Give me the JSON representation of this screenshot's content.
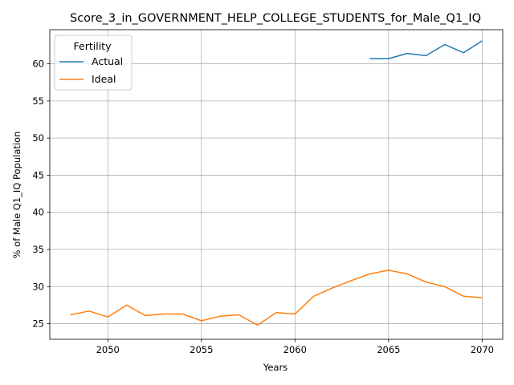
{
  "chart_data": {
    "type": "line",
    "title": "Score_3_in_GOVERNMENT_HELP_COLLEGE_STUDENTS_for_Male_Q1_IQ",
    "xlabel": "Years",
    "ylabel": "% of Male Q1_IQ Population",
    "xlim": [
      2046.9,
      2071.1
    ],
    "ylim": [
      22.9,
      64.6
    ],
    "xticks": [
      2050,
      2055,
      2060,
      2065,
      2070
    ],
    "yticks": [
      25,
      30,
      35,
      40,
      45,
      50,
      55,
      60
    ],
    "grid": true,
    "legend": {
      "title": "Fertility",
      "placement": "upper-left"
    },
    "series": [
      {
        "name": "Actual",
        "color": "#1f77b4",
        "x": [
          2064,
          2065,
          2066,
          2067,
          2068,
          2069,
          2070
        ],
        "values": [
          60.7,
          60.7,
          61.4,
          61.1,
          62.6,
          61.5,
          63.1
        ]
      },
      {
        "name": "Ideal",
        "color": "#ff7f0e",
        "x": [
          2048,
          2049,
          2050,
          2051,
          2052,
          2053,
          2054,
          2055,
          2056,
          2057,
          2058,
          2059,
          2060,
          2061,
          2062,
          2063,
          2064,
          2065,
          2066,
          2067,
          2068,
          2069,
          2070
        ],
        "values": [
          26.2,
          26.7,
          25.9,
          27.5,
          26.1,
          26.3,
          26.3,
          25.4,
          26.0,
          26.2,
          24.8,
          26.5,
          26.3,
          28.7,
          29.8,
          30.8,
          31.7,
          32.2,
          31.7,
          30.6,
          30.0,
          28.7,
          28.5
        ]
      }
    ]
  }
}
